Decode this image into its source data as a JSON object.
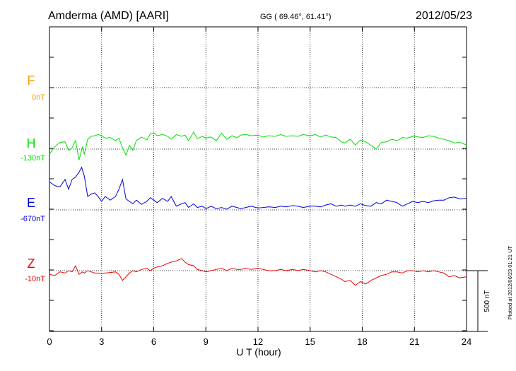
{
  "header": {
    "station": "Amderma (AMD)  [AARI]",
    "coords": "GG ( 69.46°,  61.41°)",
    "date": "2012/05/23"
  },
  "plotted_note": "Plotted at 2012/06/23 01:21  UT",
  "scale_label": "500 nT",
  "chart_data": {
    "type": "line",
    "xlabel": "U T (hour)",
    "xlim": [
      0,
      24
    ],
    "xticks": [
      "0",
      "3",
      "6",
      "9",
      "12",
      "15",
      "18",
      "21",
      "24"
    ],
    "grid": true,
    "scale_bar_nT": 500,
    "series": [
      {
        "name": "F",
        "baseline_label": "0nT",
        "color": "#f5a000",
        "x": [],
        "y": []
      },
      {
        "name": "H",
        "baseline_label": "-130nT",
        "color": "#00e000",
        "x": [
          0,
          0.3,
          0.6,
          0.9,
          1.1,
          1.3,
          1.5,
          1.7,
          1.9,
          2.0,
          2.2,
          2.4,
          2.6,
          2.8,
          3.0,
          3.2,
          3.5,
          3.8,
          4.0,
          4.2,
          4.4,
          4.6,
          4.8,
          5.0,
          5.3,
          5.6,
          5.8,
          6.0,
          6.2,
          6.5,
          6.8,
          7.0,
          7.3,
          7.6,
          7.8,
          8.0,
          8.3,
          8.5,
          8.8,
          9.0,
          9.3,
          9.6,
          9.9,
          10.2,
          10.5,
          10.8,
          11.0,
          11.3,
          11.6,
          12.0,
          12.3,
          12.6,
          13.0,
          13.3,
          13.6,
          14.0,
          14.3,
          14.6,
          15.0,
          15.3,
          15.6,
          15.9,
          16.2,
          16.5,
          16.8,
          17.0,
          17.3,
          17.6,
          17.9,
          18.2,
          18.5,
          18.8,
          19.1,
          19.4,
          19.7,
          20.0,
          20.3,
          20.6,
          20.9,
          21.2,
          21.5,
          21.8,
          22.1,
          22.4,
          22.7,
          23.0,
          23.3,
          23.6,
          24.0
        ],
        "y": [
          -170,
          -110,
          -75,
          -70,
          -140,
          -120,
          -60,
          -220,
          -110,
          -175,
          -50,
          -25,
          -20,
          -10,
          -20,
          -40,
          -35,
          -60,
          -40,
          -120,
          -180,
          -100,
          -140,
          -60,
          -30,
          -55,
          -5,
          5,
          -20,
          -10,
          -25,
          -50,
          -10,
          -25,
          -15,
          -60,
          10,
          -45,
          -25,
          -40,
          -30,
          -60,
          0,
          -50,
          -20,
          -35,
          -15,
          -10,
          -20,
          -15,
          -30,
          -20,
          -25,
          -10,
          -25,
          -20,
          -25,
          -10,
          -20,
          -10,
          -30,
          -15,
          -30,
          -35,
          -70,
          -80,
          -50,
          -95,
          -55,
          -70,
          -100,
          -130,
          -75,
          -70,
          -50,
          -60,
          -35,
          -40,
          -25,
          -30,
          -35,
          -20,
          -25,
          -40,
          -50,
          -60,
          -80,
          -75,
          -95
        ]
      },
      {
        "name": "E",
        "baseline_label": "-670nT",
        "color": "#0000dd",
        "x": [
          0,
          0.3,
          0.6,
          0.9,
          1.1,
          1.3,
          1.5,
          1.7,
          1.85,
          2.0,
          2.2,
          2.4,
          2.6,
          2.8,
          3.0,
          3.2,
          3.5,
          3.8,
          4.0,
          4.2,
          4.4,
          4.6,
          4.8,
          5.0,
          5.3,
          5.6,
          5.8,
          6.0,
          6.2,
          6.5,
          6.8,
          7.0,
          7.3,
          7.6,
          7.8,
          8.0,
          8.3,
          8.5,
          8.8,
          9.0,
          9.3,
          9.6,
          9.9,
          10.2,
          10.5,
          10.8,
          11.0,
          11.3,
          11.6,
          12.0,
          12.3,
          12.6,
          13.0,
          13.3,
          13.6,
          14.0,
          14.3,
          14.6,
          15.0,
          15.3,
          15.6,
          15.9,
          16.2,
          16.5,
          16.8,
          17.0,
          17.3,
          17.6,
          17.9,
          18.2,
          18.5,
          18.8,
          19.1,
          19.4,
          19.7,
          20.0,
          20.3,
          20.6,
          20.9,
          21.2,
          21.5,
          21.8,
          22.1,
          22.4,
          22.7,
          23.0,
          23.3,
          23.6,
          24.0
        ],
        "y": [
          -440,
          -470,
          -480,
          -420,
          -500,
          -420,
          -400,
          -360,
          -320,
          -390,
          -560,
          -540,
          -530,
          -560,
          -600,
          -560,
          -590,
          -560,
          -500,
          -420,
          -580,
          -600,
          -620,
          -590,
          -625,
          -600,
          -570,
          -590,
          -610,
          -575,
          -600,
          -560,
          -640,
          -620,
          -610,
          -650,
          -620,
          -650,
          -640,
          -660,
          -640,
          -660,
          -650,
          -665,
          -640,
          -650,
          -660,
          -650,
          -640,
          -655,
          -650,
          -645,
          -650,
          -640,
          -645,
          -635,
          -640,
          -650,
          -640,
          -640,
          -645,
          -630,
          -620,
          -640,
          -630,
          -640,
          -630,
          -640,
          -620,
          -635,
          -640,
          -610,
          -620,
          -590,
          -600,
          -610,
          -640,
          -620,
          -600,
          -610,
          -600,
          -610,
          -595,
          -590,
          -590,
          -570,
          -565,
          -580,
          -575
        ]
      },
      {
        "name": "Z",
        "baseline_label": "-10nT",
        "color": "#ee0000",
        "x": [
          0,
          0.3,
          0.6,
          0.9,
          1.1,
          1.3,
          1.5,
          1.7,
          1.9,
          2.0,
          2.2,
          2.4,
          2.6,
          2.8,
          3.0,
          3.2,
          3.5,
          3.8,
          4.0,
          4.2,
          4.4,
          4.6,
          4.8,
          5.0,
          5.3,
          5.6,
          5.8,
          6.0,
          6.2,
          6.5,
          6.8,
          7.0,
          7.3,
          7.6,
          7.8,
          8.0,
          8.3,
          8.5,
          8.8,
          9.0,
          9.3,
          9.6,
          9.9,
          10.2,
          10.5,
          10.8,
          11.0,
          11.3,
          11.6,
          12.0,
          12.3,
          12.6,
          13.0,
          13.3,
          13.6,
          14.0,
          14.3,
          14.6,
          15.0,
          15.3,
          15.6,
          15.9,
          16.2,
          16.5,
          16.8,
          17.0,
          17.3,
          17.6,
          17.9,
          18.2,
          18.5,
          18.8,
          19.1,
          19.4,
          19.7,
          20.0,
          20.3,
          20.6,
          20.9,
          21.2,
          21.5,
          21.8,
          22.1,
          22.4,
          22.7,
          23.0,
          23.3,
          23.6,
          24.0
        ],
        "y": [
          -40,
          -50,
          -20,
          -30,
          -10,
          -20,
          30,
          -40,
          -20,
          -30,
          -10,
          -20,
          -30,
          -30,
          -35,
          -30,
          -25,
          -20,
          -40,
          -90,
          -60,
          -30,
          -10,
          -20,
          0,
          10,
          -10,
          10,
          20,
          30,
          50,
          60,
          70,
          90,
          60,
          40,
          30,
          0,
          -10,
          -20,
          -10,
          0,
          10,
          -10,
          10,
          0,
          0,
          10,
          0,
          10,
          0,
          -10,
          -10,
          0,
          -10,
          0,
          -10,
          0,
          -10,
          -20,
          -10,
          -20,
          -40,
          -60,
          -80,
          -100,
          -90,
          -130,
          -100,
          -120,
          -90,
          -70,
          -50,
          -40,
          -20,
          -20,
          -30,
          -10,
          -10,
          -20,
          -10,
          -20,
          -10,
          -20,
          -30,
          -60,
          -50,
          -70,
          -60
        ]
      }
    ]
  }
}
